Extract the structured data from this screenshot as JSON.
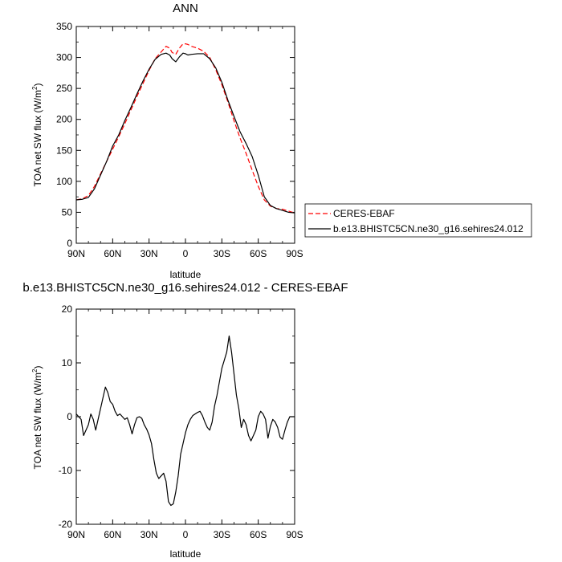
{
  "chart_data": [
    {
      "type": "line",
      "title": "ANN",
      "xlabel": "latitude",
      "ylabel": "TOA net SW flux (W/m",
      "ylabel_superscript": "2",
      "ylabel_close": ")",
      "xlim": [
        90,
        -90
      ],
      "ylim": [
        0,
        350
      ],
      "xticks": [
        90,
        60,
        30,
        0,
        -30,
        -60,
        -90
      ],
      "xtick_labels": [
        "90N",
        "60N",
        "30N",
        "0",
        "30S",
        "60S",
        "90S"
      ],
      "yticks": [
        0,
        50,
        100,
        150,
        200,
        250,
        300,
        350
      ],
      "ytick_labels": [
        "0",
        "50",
        "100",
        "150",
        "200",
        "250",
        "300",
        "350"
      ],
      "legend": {
        "placement": "right, outside plot"
      },
      "series": [
        {
          "name": "CERES-EBAF",
          "color": "#ff0000",
          "style": "dashed",
          "x": [
            90,
            85,
            80,
            75,
            70,
            65,
            60,
            55,
            50,
            45,
            40,
            35,
            30,
            25,
            20,
            16,
            13,
            11,
            8,
            5,
            2,
            0,
            -2,
            -5,
            -10,
            -15,
            -20,
            -25,
            -30,
            -35,
            -40,
            -45,
            -50,
            -55,
            -60,
            -65,
            -70,
            -75,
            -80,
            -85,
            -90
          ],
          "y": [
            70,
            72,
            77,
            92,
            112,
            132,
            152,
            172,
            193,
            215,
            237,
            258,
            279,
            298,
            309,
            318,
            315,
            308,
            305,
            315,
            322,
            322,
            321,
            318,
            315,
            310,
            300,
            280,
            256,
            228,
            198,
            170,
            145,
            118,
            92,
            70,
            60,
            56,
            55,
            52,
            49
          ]
        },
        {
          "name": "b.e13.BHISTC5CN.ne30_g16.sehires24.012",
          "color": "#000000",
          "style": "solid",
          "x": [
            90,
            85,
            80,
            75,
            70,
            65,
            60,
            55,
            50,
            45,
            40,
            35,
            30,
            25,
            20,
            16,
            13,
            11,
            8,
            5,
            2,
            0,
            -2,
            -5,
            -10,
            -15,
            -20,
            -25,
            -30,
            -35,
            -40,
            -45,
            -50,
            -55,
            -60,
            -65,
            -70,
            -75,
            -80,
            -85,
            -90
          ],
          "y": [
            70,
            71,
            74,
            88,
            110,
            132,
            157,
            175,
            198,
            219,
            241,
            262,
            281,
            297,
            305,
            307,
            304,
            298,
            293,
            301,
            307,
            306,
            304,
            305,
            306,
            306,
            298,
            283,
            260,
            231,
            205,
            180,
            161,
            140,
            110,
            75,
            61,
            56,
            53,
            50,
            49
          ]
        }
      ]
    },
    {
      "type": "line",
      "title": "b.e13.BHISTC5CN.ne30_g16.sehires24.012 - CERES-EBAF",
      "xlabel": "latitude",
      "ylabel": "TOA net SW flux (W/m",
      "ylabel_superscript": "2",
      "ylabel_close": ")",
      "xlim": [
        90,
        -90
      ],
      "ylim": [
        -20,
        20
      ],
      "xticks": [
        90,
        60,
        30,
        0,
        -30,
        -60,
        -90
      ],
      "xtick_labels": [
        "90N",
        "60N",
        "30N",
        "0",
        "30S",
        "60S",
        "90S"
      ],
      "yticks": [
        -20,
        -10,
        0,
        10,
        20
      ],
      "ytick_labels": [
        "-20",
        "-10",
        "0",
        "10",
        "20"
      ],
      "series": [
        {
          "color": "#000000",
          "style": "solid",
          "x": [
            90,
            88,
            86,
            84,
            82,
            80,
            78,
            76,
            74,
            72,
            70,
            68,
            66,
            64,
            62,
            60,
            58,
            56,
            54,
            52,
            50,
            48,
            46,
            44,
            42,
            40,
            38,
            36,
            34,
            32,
            30,
            28,
            26,
            24,
            22,
            20,
            18,
            16,
            14,
            12,
            10,
            8,
            6,
            4,
            2,
            0,
            -2,
            -4,
            -6,
            -8,
            -10,
            -12,
            -14,
            -16,
            -18,
            -20,
            -22,
            -24,
            -26,
            -28,
            -30,
            -32,
            -34,
            -36,
            -38,
            -40,
            -42,
            -44,
            -46,
            -48,
            -50,
            -52,
            -54,
            -56,
            -58,
            -60,
            -62,
            -64,
            -66,
            -68,
            -70,
            -72,
            -74,
            -76,
            -78,
            -80,
            -82,
            -84,
            -86,
            -88,
            -90
          ],
          "y": [
            0.5,
            0,
            -0.5,
            -3.5,
            -2.5,
            -1.5,
            0.5,
            -0.5,
            -2.5,
            -0.5,
            1.5,
            3.5,
            5.5,
            4.5,
            2.8,
            2.3,
            1,
            0.2,
            0.5,
            0,
            -0.5,
            -0.2,
            -1.5,
            -3.2,
            -1.5,
            -0.2,
            0,
            -0.3,
            -1.5,
            -2.3,
            -3.4,
            -5,
            -8,
            -10.5,
            -11.5,
            -11,
            -10.5,
            -12,
            -15.8,
            -16.5,
            -16.2,
            -14,
            -11,
            -7,
            -5,
            -3,
            -1.5,
            -0.5,
            0.2,
            0.5,
            0.8,
            1,
            0.2,
            -1,
            -2,
            -2.5,
            -1,
            2,
            4,
            6.5,
            9,
            10.5,
            12,
            15,
            12,
            8,
            4,
            1.5,
            -2,
            -0.5,
            -1.5,
            -3.5,
            -4.5,
            -3.5,
            -2.5,
            0,
            1,
            0.5,
            -0.5,
            -4,
            -1.8,
            -0.5,
            -1,
            -2,
            -3.8,
            -4.2,
            -2.5,
            -1,
            0,
            0,
            0
          ]
        }
      ]
    }
  ]
}
